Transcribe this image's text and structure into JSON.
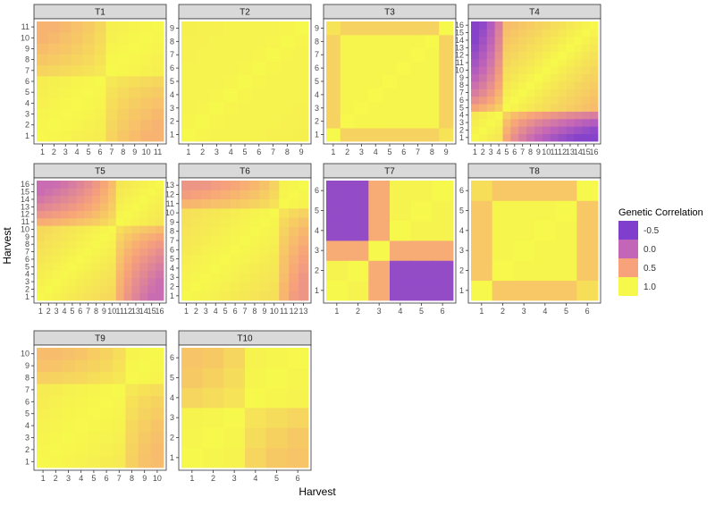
{
  "chart_data": {
    "type": "heatmap",
    "xlabel": "Harvest",
    "ylabel": "Harvest",
    "legend": {
      "title": "Genetic Correlation",
      "position": "right",
      "breaks": [
        -0.5,
        0.0,
        0.5,
        1.0
      ],
      "labels": [
        "-0.5",
        "0.0",
        "0.5",
        "1.0"
      ],
      "color_stops": [
        {
          "value": -0.5,
          "color": "#7f3fcc"
        },
        {
          "value": 0.0,
          "color": "#c466b8"
        },
        {
          "value": 0.5,
          "color": "#f7a27a"
        },
        {
          "value": 1.0,
          "color": "#f6f84b"
        }
      ]
    },
    "panels": [
      {
        "title": "T1",
        "n": 11,
        "kind": "two_block",
        "split": 6,
        "low": 0.6
      },
      {
        "title": "T2",
        "n": 9,
        "kind": "uniform",
        "low": 0.93
      },
      {
        "title": "T3",
        "n": 9,
        "kind": "edges",
        "low": 0.78
      },
      {
        "title": "T4",
        "n": 16,
        "kind": "two_block",
        "split": 4,
        "low": -0.45
      },
      {
        "title": "T5",
        "n": 16,
        "kind": "two_block",
        "split": 10,
        "low": 0.05
      },
      {
        "title": "T6",
        "n": 13,
        "kind": "two_block",
        "split": 10,
        "low": 0.4
      },
      {
        "title": "T7",
        "n": 6,
        "kind": "blocks6",
        "low": -0.35
      },
      {
        "title": "T8",
        "n": 6,
        "kind": "edges",
        "low": 0.72
      },
      {
        "title": "T9",
        "n": 10,
        "kind": "two_block",
        "split": 7,
        "low": 0.65
      },
      {
        "title": "T10",
        "n": 6,
        "kind": "two_block",
        "split": 3,
        "low": 0.7
      }
    ]
  }
}
